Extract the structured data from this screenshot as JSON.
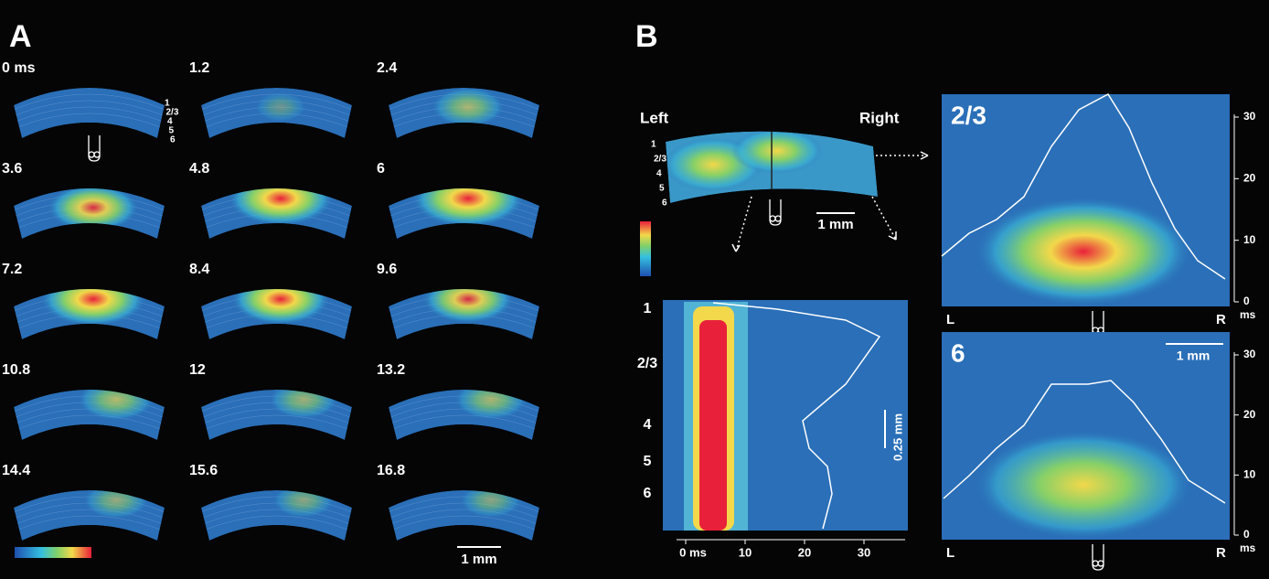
{
  "panel_a": {
    "label": "A",
    "frames": [
      "0 ms",
      "1.2",
      "2.4",
      "3.6",
      "4.8",
      "6",
      "7.2",
      "8.4",
      "9.6",
      "10.8",
      "12",
      "13.2",
      "14.4",
      "15.6",
      "16.8"
    ],
    "layers": [
      "1",
      "2/3",
      "4",
      "5",
      "6"
    ],
    "scale_bar": "1 mm"
  },
  "panel_b": {
    "label": "B",
    "slice": {
      "left": "Left",
      "right": "Right",
      "layers": [
        "1",
        "2/3",
        "4",
        "5",
        "6"
      ],
      "scale_bar": "1 mm"
    },
    "laminar_plot": {
      "layers": [
        "1",
        "2/3",
        "4",
        "5",
        "6"
      ],
      "xticks": [
        "0 ms",
        "10",
        "20",
        "30"
      ],
      "scale_bar": "0.25 mm"
    },
    "layer_plots": [
      {
        "title": "2/3",
        "left": "L",
        "right": "R",
        "unit": "ms",
        "yticks": [
          0,
          10,
          20,
          30
        ]
      },
      {
        "title": "6",
        "left": "L",
        "right": "R",
        "unit": "ms",
        "yticks": [
          0,
          10,
          20,
          30
        ],
        "scale_bar": "1 mm"
      }
    ]
  }
}
